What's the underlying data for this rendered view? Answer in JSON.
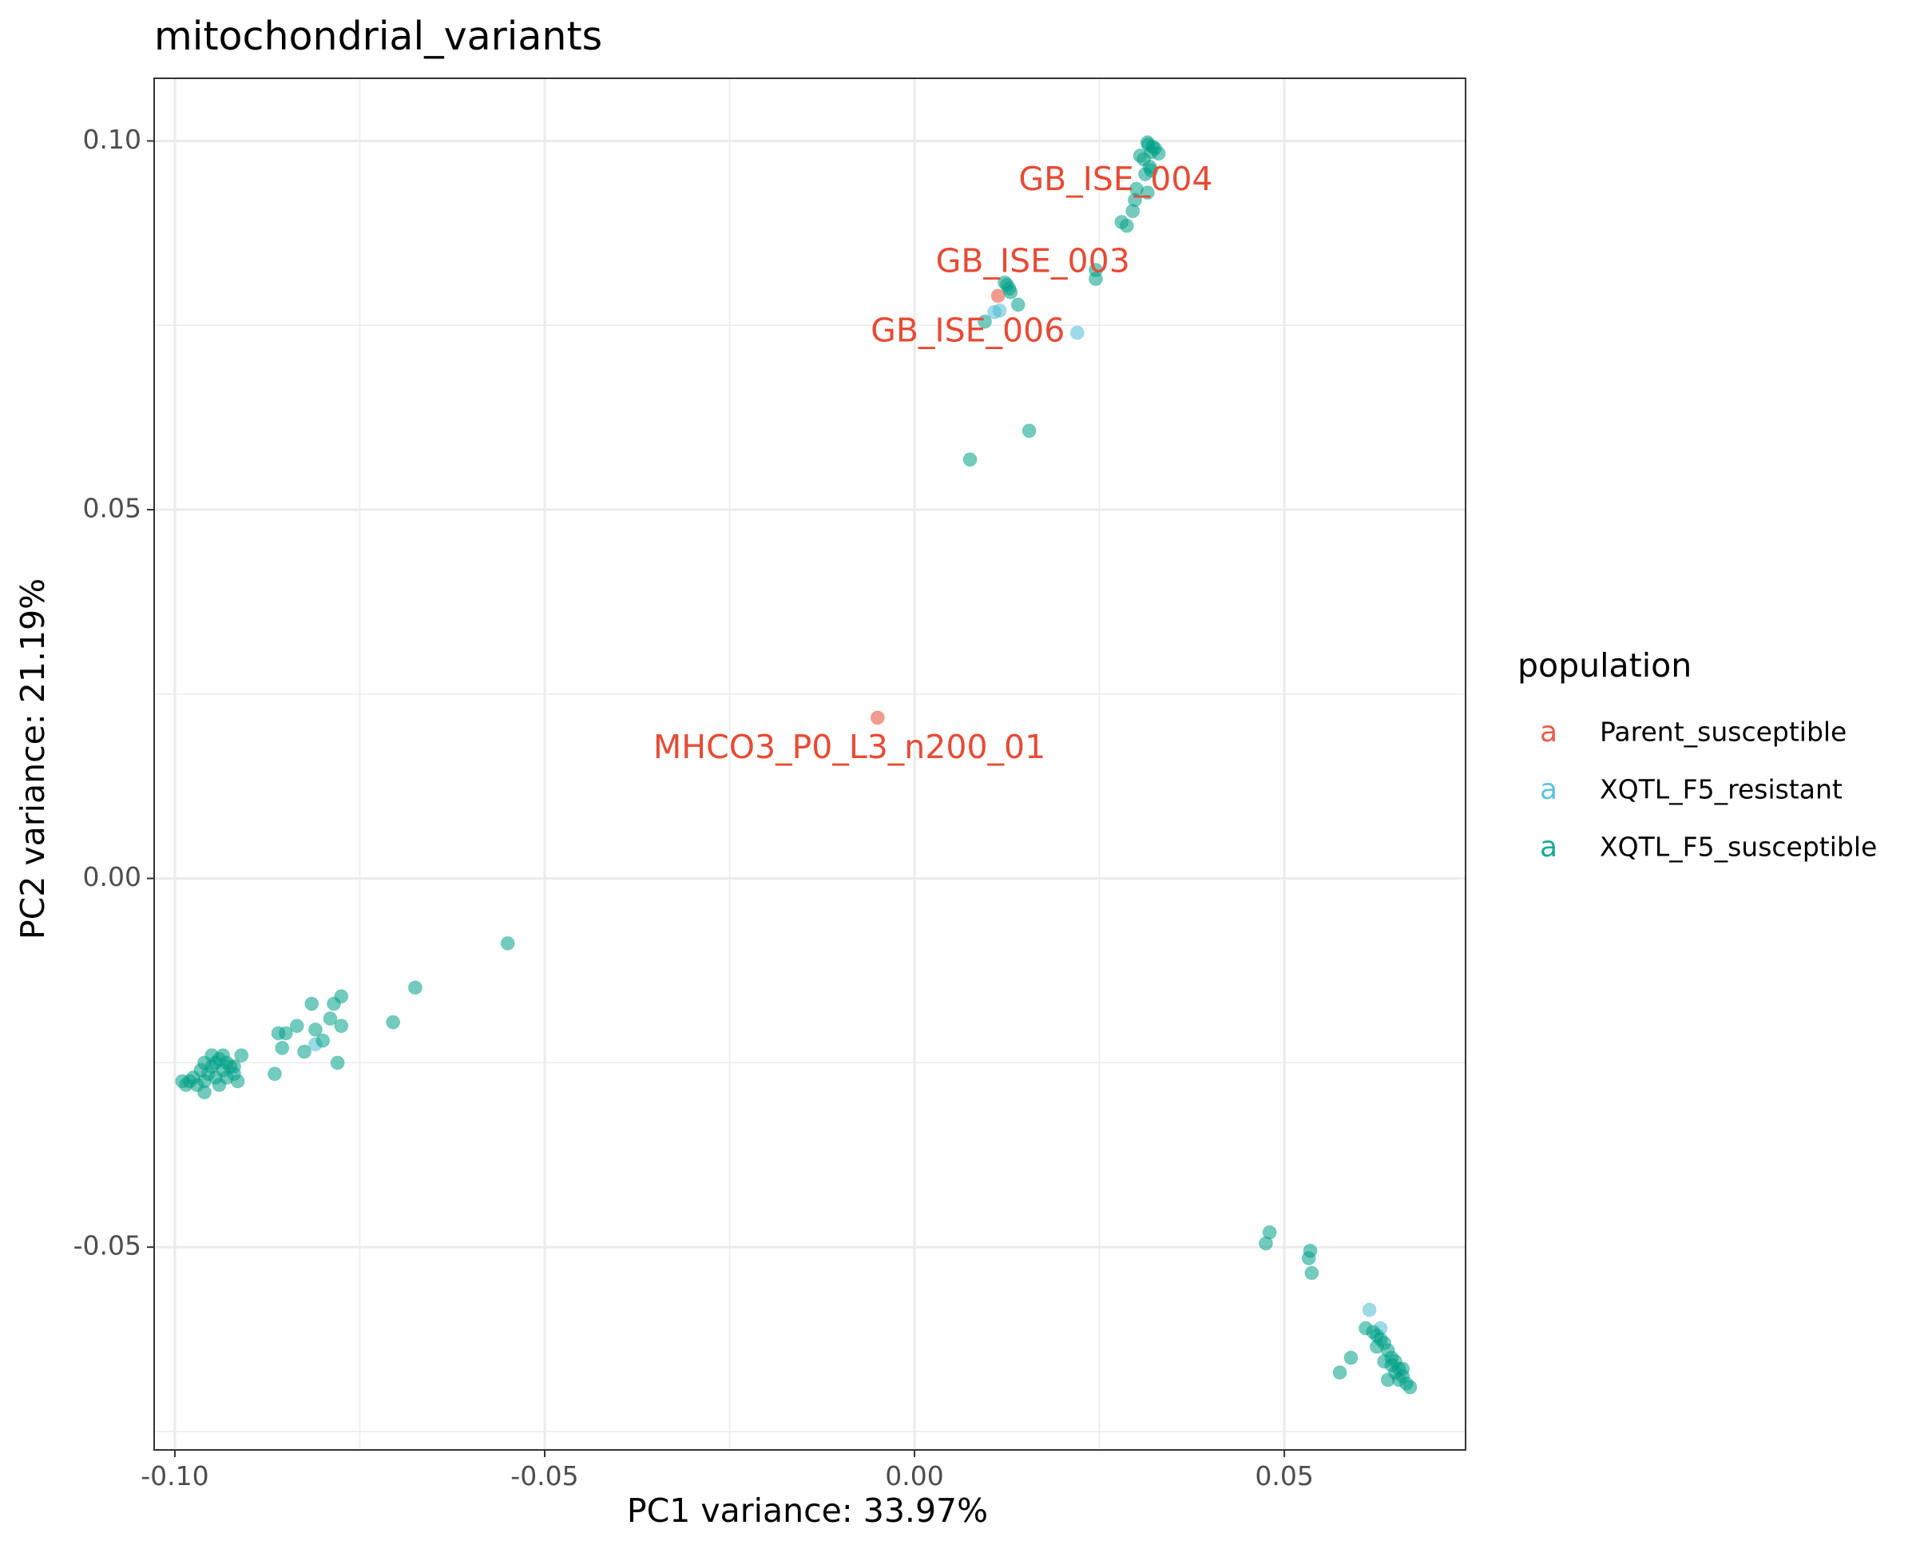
{
  "chart_data": {
    "type": "scatter",
    "title": "mitochondrial_variants",
    "xlabel": "PC1 variance: 33.97%",
    "ylabel": "PC2 variance: 21.19%",
    "xlim": [
      -0.1028,
      0.0745
    ],
    "ylim": [
      -0.0775,
      0.1085
    ],
    "x_ticks": [
      {
        "value": -0.1,
        "label": "-0.10"
      },
      {
        "value": -0.05,
        "label": "-0.05"
      },
      {
        "value": 0.0,
        "label": "0.00"
      },
      {
        "value": 0.05,
        "label": "0.05"
      }
    ],
    "y_ticks": [
      {
        "value": 0.1,
        "label": "0.10"
      },
      {
        "value": 0.05,
        "label": "0.05"
      },
      {
        "value": 0.0,
        "label": "0.00"
      },
      {
        "value": -0.05,
        "label": "-0.05"
      }
    ],
    "grid": true,
    "legend": {
      "title": "population",
      "position": "right",
      "key_glyph": "a"
    },
    "series": [
      {
        "name": "Parent_susceptible",
        "color": "#E64B35",
        "points": [
          [
            0.0113,
            0.079
          ],
          [
            -0.005,
            0.0218
          ]
        ]
      },
      {
        "name": "XQTL_F5_resistant",
        "color": "#4DBBD5",
        "points": [
          [
            0.0115,
            0.077
          ],
          [
            0.022,
            0.074
          ],
          [
            -0.081,
            -0.0225
          ],
          [
            0.0615,
            -0.0585
          ],
          [
            0.0108,
            0.0768
          ],
          [
            0.063,
            -0.061
          ]
        ]
      },
      {
        "name": "XQTL_F5_susceptible",
        "color": "#00A087",
        "points": [
          [
            0.0315,
            0.0998
          ],
          [
            0.032,
            0.0985
          ],
          [
            0.031,
            0.0975
          ],
          [
            0.0325,
            0.099
          ],
          [
            0.0318,
            0.0965
          ],
          [
            0.0312,
            0.0955
          ],
          [
            0.0305,
            0.098
          ],
          [
            0.033,
            0.0983
          ],
          [
            0.03,
            0.0935
          ],
          [
            0.0315,
            0.093
          ],
          [
            0.0298,
            0.092
          ],
          [
            0.0295,
            0.0905
          ],
          [
            0.028,
            0.089
          ],
          [
            0.0287,
            0.0885
          ],
          [
            0.032,
            0.096
          ],
          [
            0.0316,
            0.0995
          ],
          [
            0.0322,
            0.0992
          ],
          [
            0.0245,
            0.0825
          ],
          [
            0.0245,
            0.0813
          ],
          [
            0.0125,
            0.0805
          ],
          [
            0.0128,
            0.08
          ],
          [
            0.0122,
            0.0808
          ],
          [
            0.013,
            0.0795
          ],
          [
            0.014,
            0.0778
          ],
          [
            0.0095,
            0.0755
          ],
          [
            0.0155,
            0.0607
          ],
          [
            0.0075,
            0.0568
          ],
          [
            -0.055,
            -0.0088
          ],
          [
            -0.0675,
            -0.0148
          ],
          [
            -0.0705,
            -0.0195
          ],
          [
            -0.0775,
            -0.016
          ],
          [
            -0.0785,
            -0.017
          ],
          [
            -0.079,
            -0.019
          ],
          [
            -0.0775,
            -0.02
          ],
          [
            -0.081,
            -0.0205
          ],
          [
            -0.0815,
            -0.017
          ],
          [
            -0.08,
            -0.022
          ],
          [
            -0.078,
            -0.025
          ],
          [
            -0.0835,
            -0.02
          ],
          [
            -0.085,
            -0.021
          ],
          [
            -0.086,
            -0.021
          ],
          [
            -0.0825,
            -0.0235
          ],
          [
            -0.0855,
            -0.023
          ],
          [
            -0.0865,
            -0.0265
          ],
          [
            -0.091,
            -0.024
          ],
          [
            -0.0915,
            -0.0275
          ],
          [
            -0.092,
            -0.0265
          ],
          [
            -0.0925,
            -0.0255
          ],
          [
            -0.093,
            -0.025
          ],
          [
            -0.0935,
            -0.026
          ],
          [
            -0.094,
            -0.0245
          ],
          [
            -0.0945,
            -0.027
          ],
          [
            -0.095,
            -0.0255
          ],
          [
            -0.0955,
            -0.0265
          ],
          [
            -0.096,
            -0.0275
          ],
          [
            -0.0965,
            -0.026
          ],
          [
            -0.097,
            -0.028
          ],
          [
            -0.0975,
            -0.027
          ],
          [
            -0.098,
            -0.0275
          ],
          [
            -0.0985,
            -0.028
          ],
          [
            -0.099,
            -0.0275
          ],
          [
            -0.096,
            -0.029
          ],
          [
            -0.094,
            -0.028
          ],
          [
            -0.093,
            -0.027
          ],
          [
            -0.092,
            -0.0255
          ],
          [
            -0.095,
            -0.024
          ],
          [
            -0.0945,
            -0.025
          ],
          [
            -0.0935,
            -0.024
          ],
          [
            -0.096,
            -0.025
          ],
          [
            0.0475,
            -0.0495
          ],
          [
            0.048,
            -0.048
          ],
          [
            0.0535,
            -0.0505
          ],
          [
            0.0533,
            -0.0515
          ],
          [
            0.0537,
            -0.0535
          ],
          [
            0.0575,
            -0.067
          ],
          [
            0.059,
            -0.065
          ],
          [
            0.061,
            -0.061
          ],
          [
            0.062,
            -0.0615
          ],
          [
            0.0625,
            -0.062
          ],
          [
            0.063,
            -0.0625
          ],
          [
            0.0635,
            -0.063
          ],
          [
            0.064,
            -0.064
          ],
          [
            0.0645,
            -0.065
          ],
          [
            0.065,
            -0.0655
          ],
          [
            0.0655,
            -0.0665
          ],
          [
            0.066,
            -0.0675
          ],
          [
            0.0665,
            -0.0685
          ],
          [
            0.067,
            -0.069
          ],
          [
            0.0645,
            -0.066
          ],
          [
            0.0655,
            -0.068
          ],
          [
            0.065,
            -0.067
          ],
          [
            0.066,
            -0.0665
          ],
          [
            0.064,
            -0.068
          ],
          [
            0.0635,
            -0.0655
          ],
          [
            0.0625,
            -0.0635
          ]
        ]
      }
    ],
    "annotations": [
      {
        "text": "GB_ISE_004",
        "x": 0.0272,
        "y": 0.0945,
        "color": "#E64B35"
      },
      {
        "text": "GB_ISE_003",
        "x": 0.016,
        "y": 0.0834,
        "color": "#E64B35"
      },
      {
        "text": "GB_ISE_006",
        "x": 0.0072,
        "y": 0.074,
        "color": "#E64B35"
      },
      {
        "text": "MHCO3_P0_L3_n200_01",
        "x": -0.0088,
        "y": 0.0175,
        "color": "#E64B35"
      }
    ]
  }
}
